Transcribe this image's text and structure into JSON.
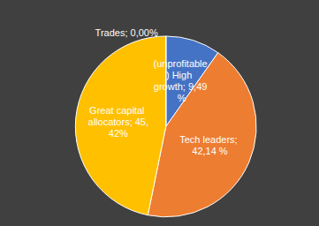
{
  "chart_data": {
    "type": "pie",
    "categories": [
      "(unprofitable) High growth",
      "Tech leaders",
      "Great capital allocators",
      "Trades"
    ],
    "values": [
      9.49,
      42.14,
      45.42,
      0.0
    ],
    "value_labels": [
      "(unprofitable) High growth; 9,49 %",
      "Tech leaders; 42,14 %",
      "Great capital allocators; 45,42%",
      "Trades; 0,00%"
    ],
    "colors": [
      "#4472c4",
      "#ed7d31",
      "#ffc000",
      "#a5a5a5"
    ],
    "data_labels": true
  }
}
